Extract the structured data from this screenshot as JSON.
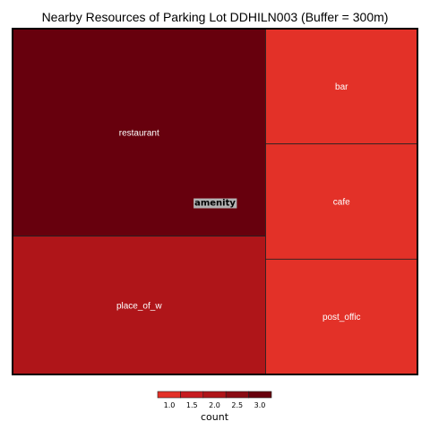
{
  "chart_data": {
    "type": "treemap",
    "title": "Nearby Resources of Parking Lot DDHILN003 (Buffer = 300m)",
    "group": "amenity",
    "items": [
      {
        "label": "restaurant",
        "value": 3,
        "color": "#67000d"
      },
      {
        "label": "place_of_w",
        "value": 2,
        "color": "#af1519"
      },
      {
        "label": "bar",
        "value": 1,
        "color": "#e33128"
      },
      {
        "label": "cafe",
        "value": 1,
        "color": "#e33128"
      },
      {
        "label": "post_offic",
        "value": 1,
        "color": "#e33128"
      }
    ],
    "legend": {
      "title": "count",
      "ticks": [
        "1.0",
        "1.5",
        "2.0",
        "2.5",
        "3.0"
      ],
      "colors": [
        "#e33128",
        "#c71c21",
        "#af1519",
        "#8a0c14",
        "#67000d"
      ]
    }
  }
}
